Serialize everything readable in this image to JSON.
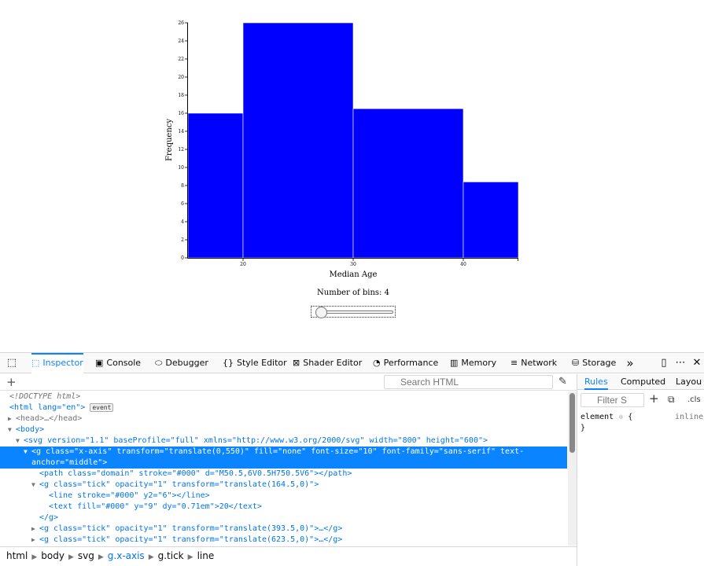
{
  "chart_data": {
    "type": "bar",
    "title": "",
    "xlabel": "Median Age",
    "ylabel": "Frequency",
    "xlim": [
      15,
      45
    ],
    "ylim": [
      0,
      26
    ],
    "bins": [
      {
        "x0": 15,
        "x1": 20,
        "value": 16
      },
      {
        "x0": 20,
        "x1": 30,
        "value": 26
      },
      {
        "x0": 30,
        "x1": 40,
        "value": 16.5
      },
      {
        "x0": 40,
        "x1": 45,
        "value": 8.4
      }
    ],
    "x_ticks": [
      20,
      30,
      40
    ],
    "y_ticks": [
      0,
      2,
      4,
      6,
      8,
      10,
      12,
      14,
      16,
      18,
      20,
      22,
      24,
      26
    ],
    "bar_color": "#0000ff",
    "grid": false
  },
  "controls": {
    "bins_label": "Number of bins:",
    "bins_value": "4",
    "slider_fraction": 0.0
  },
  "devtools": {
    "tabs": [
      {
        "label": "Inspector",
        "icon": "inspector-icon",
        "active": true
      },
      {
        "label": "Console",
        "icon": "console-icon",
        "active": false
      },
      {
        "label": "Debugger",
        "icon": "debugger-icon",
        "active": false
      },
      {
        "label": "Style Editor",
        "icon": "style-editor-icon",
        "active": false
      },
      {
        "label": "Shader Editor",
        "icon": "shader-editor-icon",
        "active": false
      },
      {
        "label": "Performance",
        "icon": "performance-icon",
        "active": false
      },
      {
        "label": "Memory",
        "icon": "memory-icon",
        "active": false
      },
      {
        "label": "Network",
        "icon": "network-icon",
        "active": false
      },
      {
        "label": "Storage",
        "icon": "storage-icon",
        "active": false
      }
    ],
    "accent": "#0a84ff",
    "search_placeholder": "Search HTML",
    "tree": [
      {
        "text": "<!DOCTYPE html>"
      },
      {
        "text": "<html lang=\"en\">",
        "badge": "event"
      },
      {
        "text": "<head>…</head>"
      },
      {
        "text": "<body>"
      },
      {
        "text": "<svg version=\"1.1\" baseProfile=\"full\" xmlns=\"http://www.w3.org/2000/svg\" width=\"800\" height=\"600\">"
      },
      {
        "text": "<g class=\"x-axis\" transform=\"translate(0,550)\" fill=\"none\" font-size=\"10\" font-family=\"sans-serif\" text-"
      },
      {
        "text": "anchor=\"middle\">"
      },
      {
        "text": "<path class=\"domain\" stroke=\"#000\" d=\"M50.5,6V0.5H750.5V6\"></path>"
      },
      {
        "text": "<g class=\"tick\" opacity=\"1\" transform=\"translate(164.5,0)\">"
      },
      {
        "text": "<line stroke=\"#000\" y2=\"6\"></line>"
      },
      {
        "text": "<text fill=\"#000\" y=\"9\" dy=\"0.71em\">20</text>"
      },
      {
        "text": "</g>"
      },
      {
        "text": "<g class=\"tick\" opacity=\"1\" transform=\"translate(393.5,0)\">…</g>"
      },
      {
        "text": "<g class=\"tick\" opacity=\"1\" transform=\"translate(623.5,0)\">…</g>"
      }
    ],
    "breadcrumbs": [
      "html",
      "body",
      "svg",
      "g.x-axis",
      "g.tick",
      "line"
    ],
    "sidebar": {
      "tabs": [
        "Rules",
        "Computed",
        "Layou"
      ],
      "filter_placeholder": "Filter S",
      "cls_label": ".cls",
      "rule_selector": "element",
      "rule_open": "{",
      "rule_close": "}",
      "rule_origin": "inline"
    }
  }
}
